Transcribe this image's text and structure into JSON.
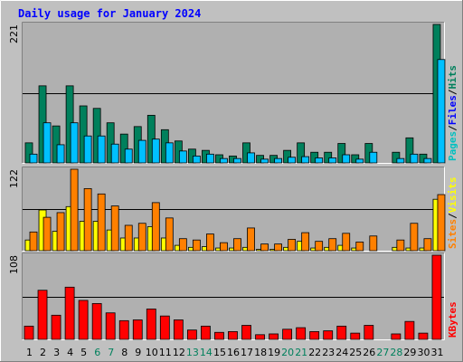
{
  "colors": {
    "background": "#c0c0c0",
    "plot_bg": "#b0b0b0",
    "title": "#0000ff",
    "hits": "#00805c",
    "files": "#00c0ff",
    "pages": "#00c0c0",
    "visits": "#ffff00",
    "sites": "#ff8000",
    "kbytes": "#ff0000",
    "weekend": "#00805c",
    "weekday": "#000000"
  },
  "chart_data": {
    "type": "bar",
    "title": "Daily usage for January 2024",
    "categories": [
      "1",
      "2",
      "3",
      "4",
      "5",
      "6",
      "7",
      "8",
      "9",
      "10",
      "11",
      "12",
      "13",
      "14",
      "15",
      "16",
      "17",
      "18",
      "19",
      "20",
      "21",
      "22",
      "23",
      "24",
      "25",
      "26",
      "27",
      "28",
      "29",
      "30",
      "31"
    ],
    "weekend_days": [
      "6",
      "7",
      "13",
      "14",
      "20",
      "21",
      "27",
      "28"
    ],
    "panels": [
      {
        "id": "hits-files-pages",
        "max_label": "221",
        "ylim": [
          0,
          221
        ],
        "axis_labels": [
          {
            "text": "Hits",
            "color": "#00805c"
          },
          {
            "text": "/",
            "color": "#000000"
          },
          {
            "text": "Files",
            "color": "#0000ff"
          },
          {
            "text": "/",
            "color": "#000000"
          },
          {
            "text": "Pages",
            "color": "#00c0c0"
          }
        ],
        "series": [
          {
            "name": "Hits",
            "color": "#00805c",
            "values": [
              32,
              123,
              59,
              123,
              91,
              87,
              64,
              46,
              58,
              76,
              53,
              35,
              22,
              20,
              13,
              11,
              32,
              12,
              12,
              20,
              32,
              17,
              17,
              31,
              13,
              31,
              0,
              17,
              40,
              14,
              221
            ]
          },
          {
            "name": "Files",
            "color": "#00c0ff",
            "values": [
              14,
              64,
              29,
              64,
              43,
              43,
              30,
              22,
              36,
              38,
              32,
              19,
              11,
              14,
              7,
              7,
              16,
              6,
              7,
              9,
              10,
              8,
              8,
              13,
              6,
              17,
              0,
              7,
              14,
              7,
              165
            ]
          },
          {
            "name": "Pages",
            "color": "#00c0c0",
            "values": [
              0,
              0,
              0,
              0,
              0,
              0,
              0,
              0,
              0,
              0,
              0,
              0,
              0,
              0,
              0,
              0,
              0,
              0,
              0,
              0,
              0,
              0,
              0,
              0,
              0,
              0,
              0,
              0,
              0,
              0,
              0
            ]
          }
        ]
      },
      {
        "id": "visits-sites",
        "max_label": "122",
        "ylim": [
          0,
          122
        ],
        "axis_labels": [
          {
            "text": "Visits",
            "color": "#ffff00"
          },
          {
            "text": "/",
            "color": "#000000"
          },
          {
            "text": "Sites",
            "color": "#ff8000"
          }
        ],
        "series": [
          {
            "name": "Visits",
            "color": "#ffff00",
            "values": [
              16,
              61,
              29,
              66,
              44,
              44,
              31,
              19,
              19,
              36,
              19,
              8,
              5,
              6,
              4,
              4,
              5,
              2,
              2,
              5,
              14,
              4,
              5,
              8,
              4,
              0,
              0,
              5,
              4,
              4,
              77
            ]
          },
          {
            "name": "Sites",
            "color": "#ff8000",
            "values": [
              28,
              50,
              57,
              122,
              93,
              85,
              67,
              38,
              41,
              72,
              49,
              18,
              16,
              25,
              12,
              18,
              34,
              10,
              10,
              17,
              27,
              14,
              18,
              26,
              13,
              22,
              0,
              16,
              41,
              18,
              84
            ]
          }
        ]
      },
      {
        "id": "kbytes",
        "max_label": "108",
        "ylim": [
          0,
          108
        ],
        "axis_labels": [
          {
            "text": "KBytes",
            "color": "#ff0000"
          }
        ],
        "series": [
          {
            "name": "KBytes",
            "color": "#ff0000",
            "values": [
              17,
              63,
              31,
              67,
              50,
              46,
              34,
              24,
              25,
              39,
              30,
              25,
              12,
              17,
              9,
              10,
              18,
              6,
              7,
              13,
              15,
              10,
              11,
              17,
              8,
              18,
              0,
              7,
              23,
              8,
              108
            ]
          }
        ]
      }
    ]
  }
}
